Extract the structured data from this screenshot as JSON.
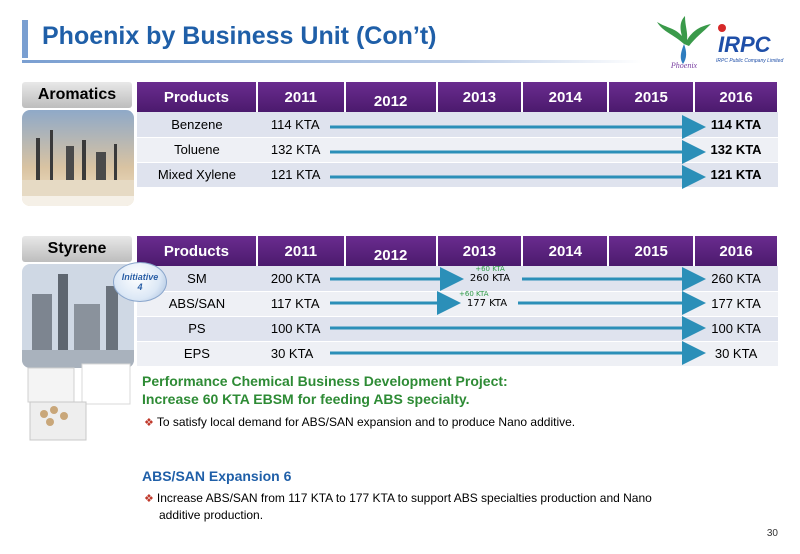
{
  "slide": {
    "title": "Phoenix by Business Unit (Con’t)",
    "page_number": "30",
    "logos": {
      "phoenix_text": "Phoenix",
      "irpc_text": "IRPC",
      "irpc_sub": "IRPC Public Company Limited"
    }
  },
  "aromatics": {
    "label": "Aromatics",
    "headers": [
      "Products",
      "2011",
      "2012",
      "2013",
      "2014",
      "2015",
      "2016"
    ],
    "rows": [
      {
        "product": "Benzene",
        "start": "114 KTA",
        "end": "114 KTA"
      },
      {
        "product": "Toluene",
        "start": "132 KTA",
        "end": "132 KTA"
      },
      {
        "product": "Mixed Xylene",
        "start": "121 KTA",
        "end": "121 KTA"
      }
    ]
  },
  "styrene": {
    "label": "Styrene",
    "initiative": {
      "line1": "Initiative",
      "line2": "4"
    },
    "headers": [
      "Products",
      "2011",
      "2012",
      "2013",
      "2014",
      "2015",
      "2016"
    ],
    "rows": [
      {
        "product": "SM",
        "start": "200 KTA",
        "end": "260 KTA",
        "step_plus": "+60 KTA",
        "step_value": "260 KTA"
      },
      {
        "product": "ABS/SAN",
        "start": "117 KTA",
        "end": "177 KTA",
        "step_plus": "+60 KTA",
        "step_value": "177 KTA"
      },
      {
        "product": "PS",
        "start": "100 KTA",
        "end": "100 KTA"
      },
      {
        "product": "EPS",
        "start": "30 KTA",
        "end": "30 KTA"
      }
    ]
  },
  "project": {
    "heading_line1": "Performance Chemical Business Development Project:",
    "heading_line2": "Increase 60 KTA EBSM for feeding ABS specialty.",
    "bullet1": "To satisfy local demand for ABS/SAN expansion and to produce Nano additive.",
    "expansion_heading": "ABS/SAN Expansion 6",
    "bullet2_line1": "Increase  ABS/SAN  from 117 KTA to 177 KTA  to support ABS specialties production and Nano",
    "bullet2_line2": "additive production."
  },
  "colors": {
    "title": "#1f5fa8",
    "header_purple": "#5b2380",
    "arrow": "#2b8fb8",
    "project_green": "#2e8b35",
    "bullet_red": "#c0392b"
  }
}
